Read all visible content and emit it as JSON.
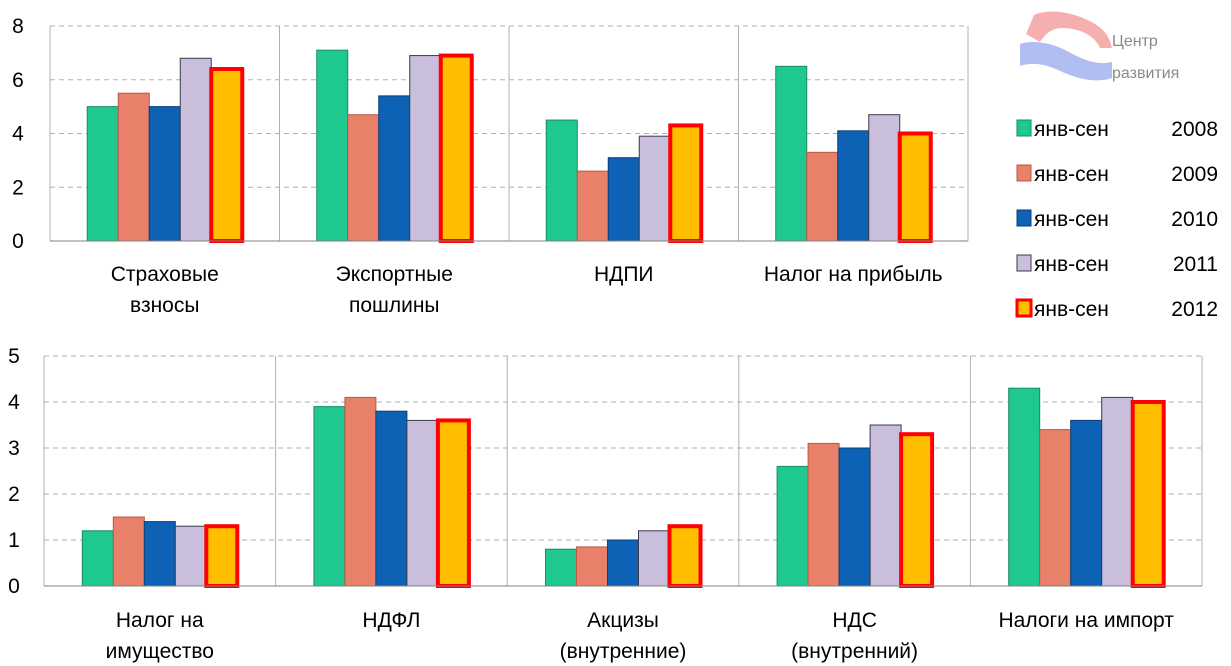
{
  "logo": {
    "line1": "Центр",
    "line2": "развития"
  },
  "legend": {
    "entries": [
      {
        "label": "янв-сен",
        "year": "2008",
        "color": "#1fc88e",
        "border": "#1a8a62"
      },
      {
        "label": "янв-сен",
        "year": "2009",
        "color": "#e8806a",
        "border": "#b85a44"
      },
      {
        "label": "янв-сен",
        "year": "2010",
        "color": "#0e62b5",
        "border": "#0a3f78"
      },
      {
        "label": "янв-сен",
        "year": "2011",
        "color": "#c9bfdc",
        "border": "#3a3a4a"
      },
      {
        "label": "янв-сен",
        "year": "2012",
        "color": "#ffbf00",
        "border": "#ff0000"
      }
    ]
  },
  "chart_data": [
    {
      "type": "bar",
      "ylim": [
        0,
        8
      ],
      "yticks": [
        "0",
        "2",
        "4",
        "6",
        "8"
      ],
      "grid": true,
      "legend_position": "right",
      "categories": [
        [
          "Страховые",
          "взносы"
        ],
        [
          "Экспортные",
          "пошлины"
        ],
        [
          "НДПИ"
        ],
        [
          "Налог на прибыль"
        ]
      ],
      "series": [
        {
          "name": "янв-сен 2008",
          "values": [
            5.0,
            7.1,
            4.5,
            6.5
          ]
        },
        {
          "name": "янв-сен 2009",
          "values": [
            5.5,
            4.7,
            2.6,
            3.3
          ]
        },
        {
          "name": "янв-сен 2010",
          "values": [
            5.0,
            5.4,
            3.1,
            4.1
          ]
        },
        {
          "name": "янв-сен 2011",
          "values": [
            6.8,
            6.9,
            3.9,
            4.7
          ]
        },
        {
          "name": "янв-сен 2012",
          "values": [
            6.4,
            6.9,
            4.3,
            4.0
          ]
        }
      ]
    },
    {
      "type": "bar",
      "ylim": [
        0,
        5
      ],
      "yticks": [
        "0",
        "1",
        "2",
        "3",
        "4",
        "5"
      ],
      "grid": true,
      "categories": [
        [
          "Налог на",
          "имущество"
        ],
        [
          "НДФЛ"
        ],
        [
          "Акцизы",
          "(внутренние)"
        ],
        [
          "НДС",
          "(внутренний)"
        ],
        [
          "Налоги на импорт"
        ]
      ],
      "series": [
        {
          "name": "янв-сен 2008",
          "values": [
            1.2,
            3.9,
            0.8,
            2.6,
            4.3
          ]
        },
        {
          "name": "янв-сен 2009",
          "values": [
            1.5,
            4.1,
            0.85,
            3.1,
            3.4
          ]
        },
        {
          "name": "янв-сен 2010",
          "values": [
            1.4,
            3.8,
            1.0,
            3.0,
            3.6
          ]
        },
        {
          "name": "янв-сен 2011",
          "values": [
            1.3,
            3.6,
            1.2,
            3.5,
            4.1
          ]
        },
        {
          "name": "янв-сен 2012",
          "values": [
            1.3,
            3.6,
            1.3,
            3.3,
            4.0
          ]
        }
      ]
    }
  ]
}
